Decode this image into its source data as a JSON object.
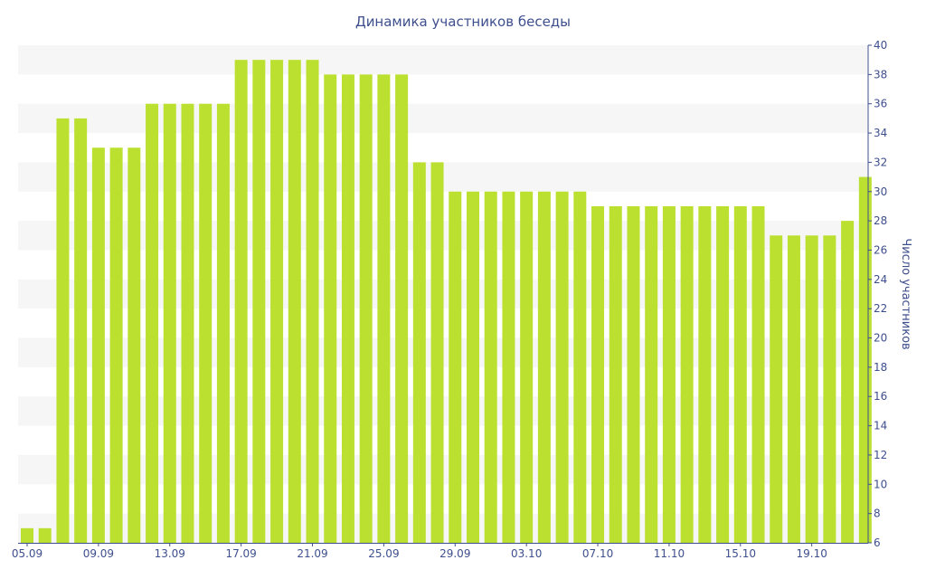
{
  "chart_data": {
    "type": "bar",
    "title": "Динамика участников беседы",
    "xlabel": "",
    "ylabel": "Число участников",
    "ylim": [
      6,
      40
    ],
    "y_ticks": [
      6,
      8,
      10,
      12,
      14,
      16,
      18,
      20,
      22,
      24,
      26,
      28,
      30,
      32,
      34,
      36,
      38,
      40
    ],
    "x_tick_labels": [
      "05.09",
      "09.09",
      "13.09",
      "17.09",
      "21.09",
      "25.09",
      "29.09",
      "03.10",
      "07.10",
      "11.10",
      "15.10",
      "19.10"
    ],
    "x_tick_every": 4,
    "y_axis_side": "right",
    "grid": "alternating horizontal bands",
    "legend": "none",
    "categories": [
      "05.09",
      "06.09",
      "07.09",
      "08.09",
      "09.09",
      "10.09",
      "11.09",
      "12.09",
      "13.09",
      "14.09",
      "15.09",
      "16.09",
      "17.09",
      "18.09",
      "19.09",
      "20.09",
      "21.09",
      "22.09",
      "23.09",
      "24.09",
      "25.09",
      "26.09",
      "27.09",
      "28.09",
      "29.09",
      "30.09",
      "01.10",
      "02.10",
      "03.10",
      "04.10",
      "05.10",
      "06.10",
      "07.10",
      "08.10",
      "09.10",
      "10.10",
      "11.10",
      "12.10",
      "13.10",
      "14.10",
      "15.10",
      "16.10",
      "17.10",
      "18.10",
      "19.10",
      "20.10",
      "21.10",
      "22.10"
    ],
    "values": [
      7,
      7,
      35,
      35,
      33,
      33,
      33,
      36,
      36,
      36,
      36,
      36,
      39,
      39,
      39,
      39,
      39,
      38,
      38,
      38,
      38,
      38,
      32,
      32,
      30,
      30,
      30,
      30,
      30,
      30,
      30,
      30,
      29,
      29,
      29,
      29,
      29,
      29,
      29,
      29,
      29,
      29,
      27,
      27,
      27,
      27,
      28,
      31
    ],
    "colors": {
      "bar": "#bbe030",
      "text": "#3e4f8e",
      "axis": "#3e4f8e",
      "band": "#f6f6f6"
    }
  }
}
